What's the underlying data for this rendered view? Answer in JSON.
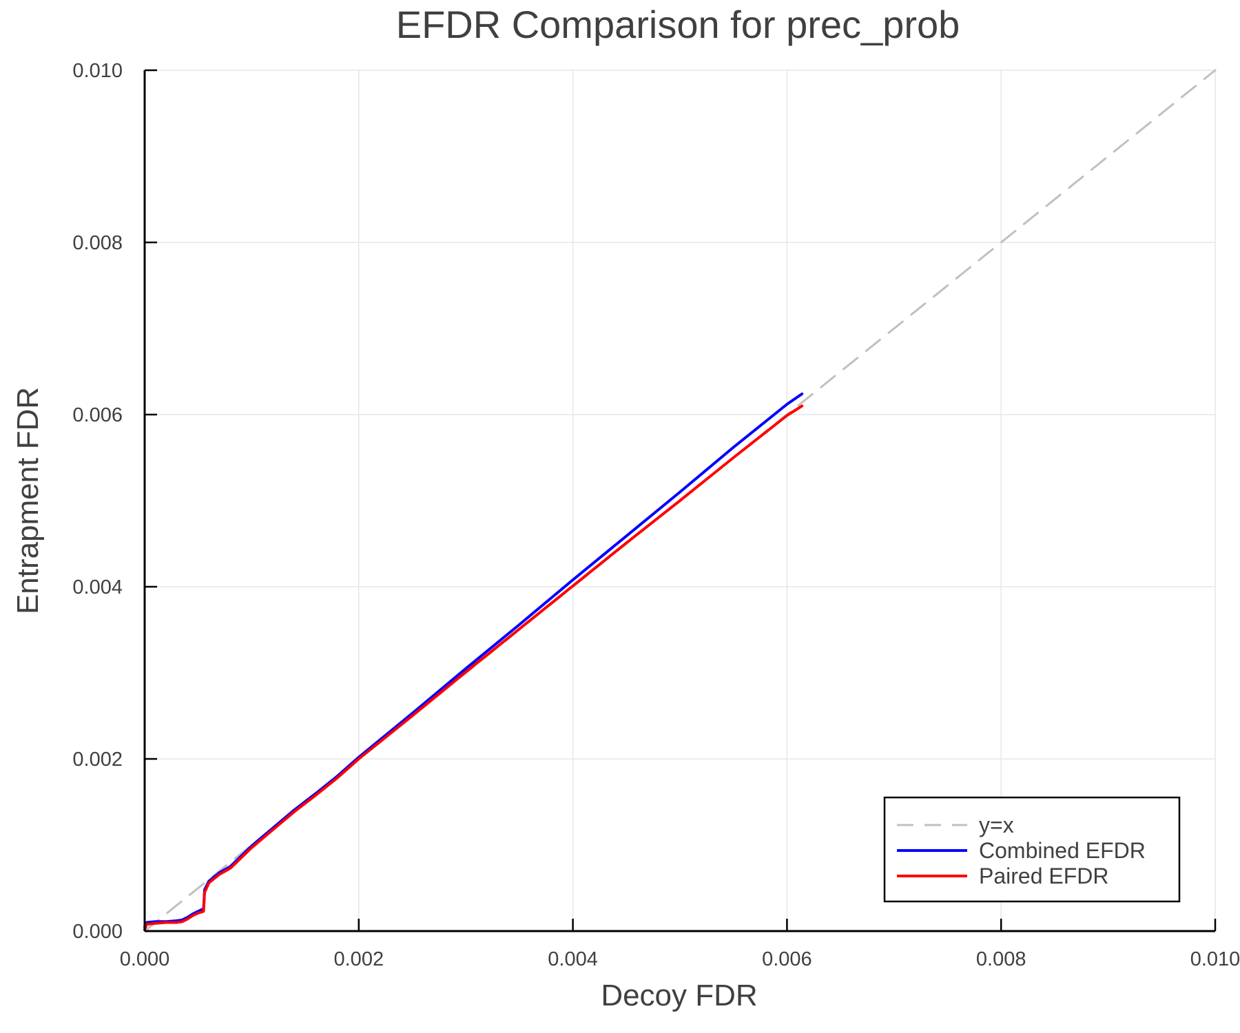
{
  "chart_data": {
    "type": "line",
    "title": "EFDR Comparison for prec_prob",
    "xlabel": "Decoy FDR",
    "ylabel": "Entrapment FDR",
    "xlim": [
      0.0,
      0.01
    ],
    "ylim": [
      0.0,
      0.01
    ],
    "grid": true,
    "legend_position": "bottom-right",
    "xticks": [
      "0.000",
      "0.002",
      "0.004",
      "0.006",
      "0.008",
      "0.010"
    ],
    "yticks": [
      "0.000",
      "0.002",
      "0.004",
      "0.006",
      "0.008",
      "0.010"
    ],
    "series": [
      {
        "name": "y=x",
        "style": "dashed",
        "color": "#c0c0c0",
        "x": [
          0.0,
          0.01
        ],
        "y": [
          0.0,
          0.01
        ]
      },
      {
        "name": "Combined EFDR",
        "style": "solid",
        "color": "#0000ff",
        "x": [
          0.0,
          2e-05,
          0.0001,
          0.0002,
          0.0003,
          0.00035,
          0.0004,
          0.00045,
          0.0005,
          0.00055,
          0.00056,
          0.0006,
          0.0007,
          0.0008,
          0.0009,
          0.001,
          0.0012,
          0.0014,
          0.0016,
          0.0018,
          0.002,
          0.0025,
          0.003,
          0.0035,
          0.004,
          0.0045,
          0.005,
          0.0055,
          0.006,
          0.00614
        ],
        "y": [
          5e-05,
          0.0001,
          0.00011,
          0.00011,
          0.00012,
          0.00013,
          0.00016,
          0.0002,
          0.00023,
          0.00026,
          0.00048,
          0.00058,
          0.00068,
          0.00075,
          0.00087,
          0.00099,
          0.0012,
          0.00141,
          0.0016,
          0.0018,
          0.00202,
          0.00253,
          0.00305,
          0.00356,
          0.00408,
          0.00459,
          0.0051,
          0.00562,
          0.00612,
          0.00624
        ]
      },
      {
        "name": "Paired EFDR",
        "style": "solid",
        "color": "#ff0000",
        "x": [
          0.0,
          2e-05,
          0.0001,
          0.0002,
          0.0003,
          0.00035,
          0.0004,
          0.00045,
          0.0005,
          0.00055,
          0.00056,
          0.0006,
          0.0007,
          0.0008,
          0.0009,
          0.001,
          0.0012,
          0.0014,
          0.0016,
          0.0018,
          0.002,
          0.0025,
          0.003,
          0.0035,
          0.004,
          0.0045,
          0.005,
          0.0055,
          0.006,
          0.00614
        ],
        "y": [
          2e-05,
          8e-05,
          9e-05,
          0.0001,
          0.0001,
          0.00011,
          0.00014,
          0.00018,
          0.00021,
          0.00023,
          0.00045,
          0.00056,
          0.00066,
          0.00073,
          0.00085,
          0.00097,
          0.00118,
          0.00139,
          0.00158,
          0.00178,
          0.002,
          0.0025,
          0.00301,
          0.00351,
          0.00401,
          0.00451,
          0.005,
          0.0055,
          0.00599,
          0.0061
        ]
      }
    ]
  },
  "legend": {
    "items": [
      {
        "label": "y=x",
        "color": "#c0c0c0",
        "dashed": true
      },
      {
        "label": "Combined EFDR",
        "color": "#0000ff",
        "dashed": false
      },
      {
        "label": "Paired EFDR",
        "color": "#ff0000",
        "dashed": false
      }
    ]
  }
}
